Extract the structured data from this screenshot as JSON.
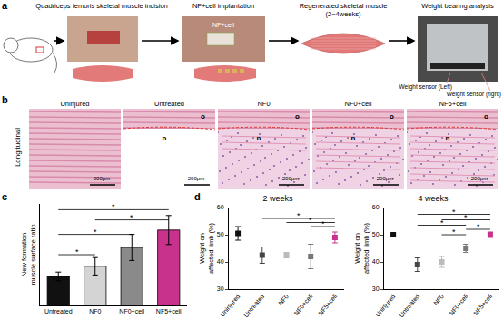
{
  "panel_a": {
    "label": "a",
    "steps": [
      "Quadriceps femoris skeletal muscle incision",
      "NF+cell implantation",
      "Regenerated skeletal muscle (2~4weeks)",
      "Weight bearing analysis"
    ],
    "implant_label": "NF+cell",
    "sensors": [
      "Weight sensor (Left)",
      "Weight sensor (right)"
    ]
  },
  "panel_b": {
    "label": "b",
    "row_label": "Longitudinal",
    "columns": [
      "Uninjured",
      "Untreated",
      "NF0",
      "NF0+cell",
      "NF5+cell"
    ],
    "scale_bar": "200μm",
    "overlay_labels": [
      "o",
      "n"
    ]
  },
  "chart_data": [
    {
      "label": "c",
      "type": "bar",
      "y_label": "New formation muscle surface ratio",
      "categories": [
        "Untreated",
        "NF0",
        "NF0+cell",
        "NF5+cell"
      ],
      "values": [
        1.0,
        1.35,
        2.0,
        2.6
      ],
      "errors": [
        0.15,
        0.3,
        0.45,
        0.5
      ],
      "colors": [
        "#111111",
        "#d4d4d4",
        "#8a8a8a",
        "#c8328c"
      ],
      "ylim": [
        0,
        3.5
      ],
      "tick_labels": "x",
      "grid": false,
      "significance": [
        {
          "from": "Untreated",
          "to": "NF0",
          "y": 1.75,
          "label": "*"
        },
        {
          "from": "Untreated",
          "to": "NF0+cell",
          "y": 2.45,
          "label": "*"
        },
        {
          "from": "NF0",
          "to": "NF5+cell",
          "y": 2.95,
          "label": "*"
        },
        {
          "from": "Untreated",
          "to": "NF5+cell",
          "y": 3.3,
          "label": "*"
        }
      ]
    },
    {
      "label": "d",
      "type": "scatter",
      "title": "2 weeks",
      "y_label": "Weight on affected limb (%)",
      "categories": [
        "Uninjured",
        "Untreated",
        "NF0",
        "NF0+cell",
        "NF5+cell"
      ],
      "values": [
        50.5,
        42.5,
        42.5,
        42,
        49
      ],
      "errors": [
        2.5,
        3,
        1,
        4.5,
        2
      ],
      "colors": [
        "#111111",
        "#444444",
        "#bbbbbb",
        "#777777",
        "#c8328c"
      ],
      "marker": "square",
      "ylim": [
        30,
        60
      ],
      "yticks": [
        30,
        40,
        50,
        60
      ],
      "grid": false,
      "significance": [
        {
          "from": "NF0+cell",
          "to": "NF5+cell",
          "y": 53,
          "label": "*"
        },
        {
          "from": "NF0",
          "to": "NF5+cell",
          "y": 54.5,
          "label": "*"
        },
        {
          "from": "Untreated",
          "to": "NF5+cell",
          "y": 56,
          "label": "*"
        }
      ]
    },
    {
      "type": "scatter",
      "title": "4 weeks",
      "y_label": "Weight on affected limb (%)",
      "categories": [
        "Uninjured",
        "Untreated",
        "NF0",
        "NF0+cell",
        "NF5+cell"
      ],
      "values": [
        50,
        39,
        40,
        45,
        50
      ],
      "errors": [
        0.3,
        2.5,
        2,
        1.5,
        1
      ],
      "colors": [
        "#111111",
        "#444444",
        "#bbbbbb",
        "#777777",
        "#c8328c"
      ],
      "marker": "square",
      "ylim": [
        30,
        60
      ],
      "yticks": [
        30,
        40,
        50,
        60
      ],
      "grid": false,
      "significance": [
        {
          "from": "NF0+cell",
          "to": "NF5+cell",
          "y": 52,
          "label": "*"
        },
        {
          "from": "NF0",
          "to": "NF0+cell",
          "y": 50,
          "label": "*"
        },
        {
          "from": "Untreated",
          "to": "NF0+cell",
          "y": 53.5,
          "label": "*"
        },
        {
          "from": "NF0",
          "to": "NF5+cell",
          "y": 55.5,
          "label": "*"
        },
        {
          "from": "Untreated",
          "to": "NF5+cell",
          "y": 57.5,
          "label": "*"
        }
      ]
    }
  ]
}
